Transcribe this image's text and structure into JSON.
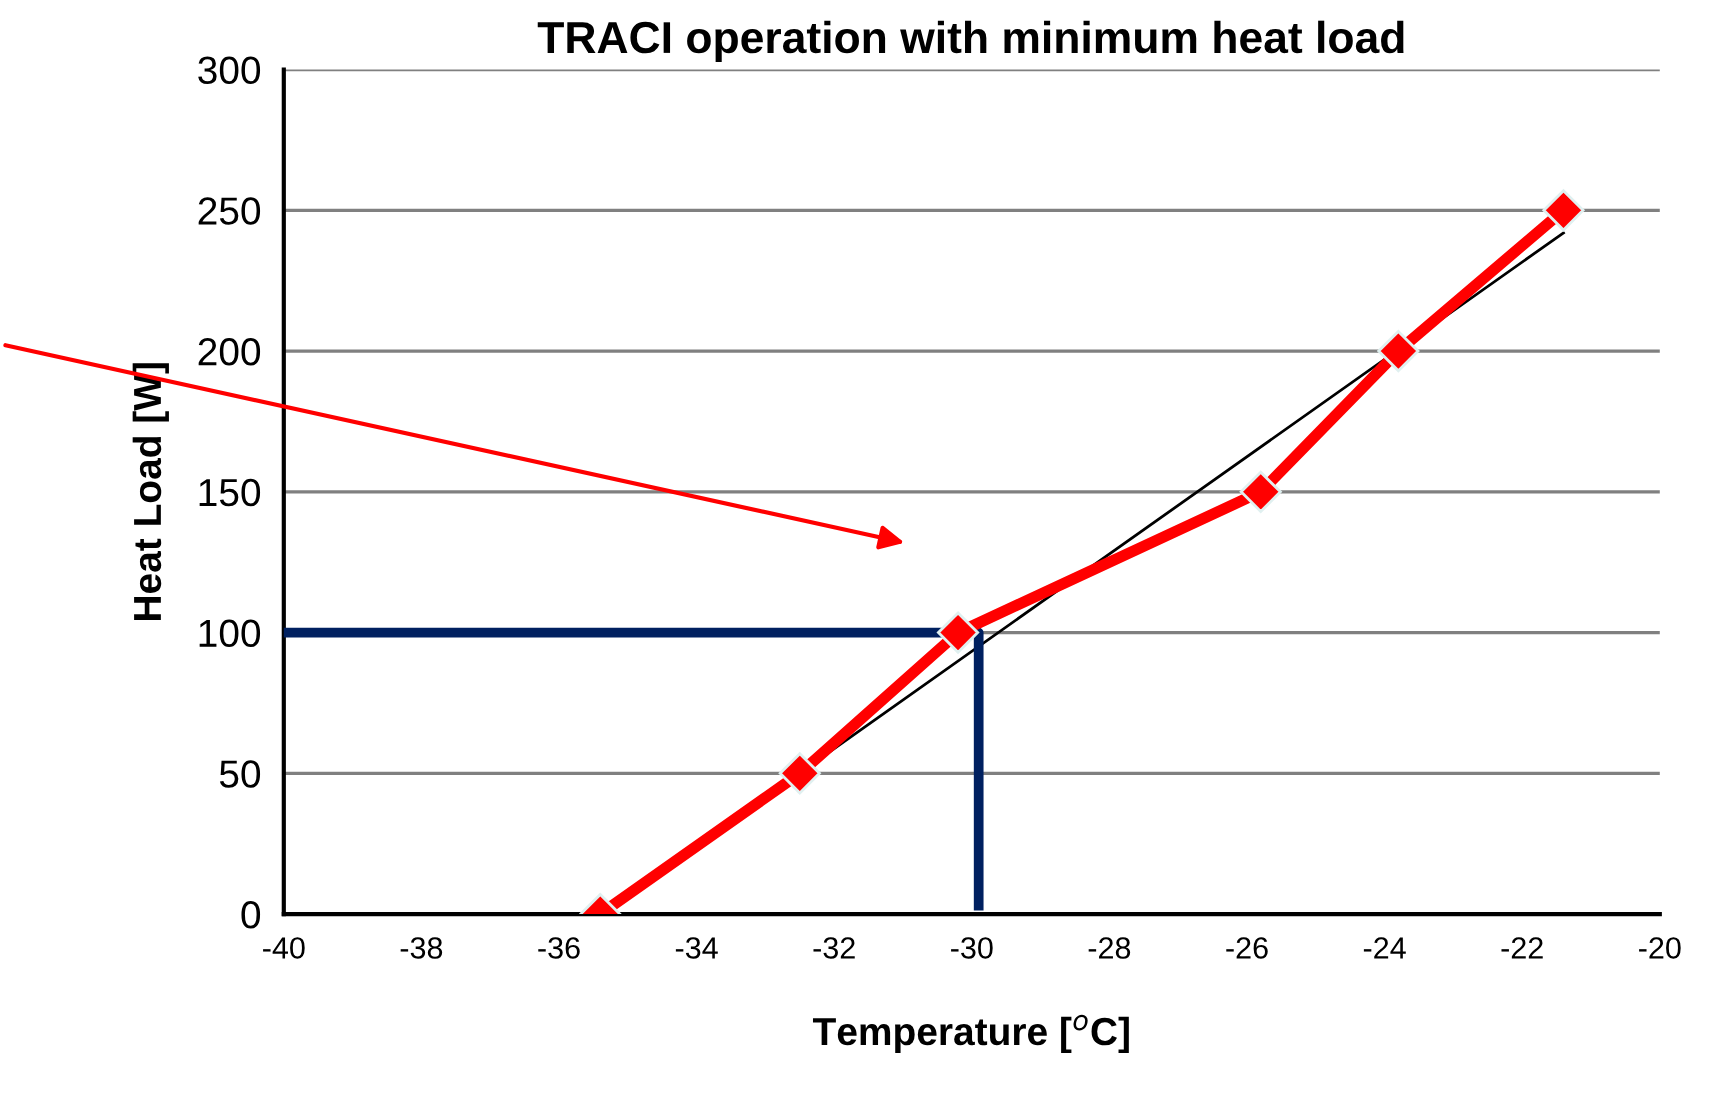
{
  "chart_data": {
    "type": "line",
    "title": "TRACI operation with minimum heat load",
    "xlabel": "Temperature [$^{o}$C]",
    "ylabel": "Heat Load [W]",
    "series": [
      {
        "color": "#ff0000",
        "x": [
          -35.4,
          -32.5,
          -30.2,
          -25.8,
          -23.8,
          -21.4
        ],
        "values": [
          0,
          50,
          100,
          150,
          200,
          250
        ]
      },
      {
        "type": "line",
        "color": "#000000",
        "marker": "none",
        "x": [
          -35.4,
          -21.4
        ],
        "values": [
          0,
          242
        ]
      },
      {
        "type": "line",
        "color": "#002060",
        "marker": "none",
        "x": [
          -40,
          -29.9,
          -29.9
        ],
        "values": [
          100,
          100,
          3
        ]
      }
    ],
    "xlim": [
      -40,
      -20
    ],
    "xticks": [
      -40,
      -38,
      -36,
      -34,
      -32,
      -30,
      -28,
      -26,
      -24,
      -22,
      -20
    ],
    "ylim": [
      0,
      300
    ],
    "yticks": [
      0,
      50,
      100,
      150,
      200,
      250,
      300
    ],
    "grid": "y",
    "marker": "diamond",
    "line_style": "solid"
  }
}
